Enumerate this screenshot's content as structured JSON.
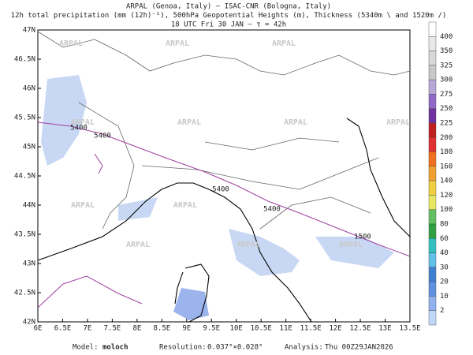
{
  "header": {
    "lines": [
      "ARPAL (Genoa, Italy)  —  ISAC-CNR (Bologna, Italy)",
      "12h total precipitation (mm (12h)⁻¹), 500hPa Geopotential Heights (m), Thickness (5340m \\ and 1520m /)",
      "18 UTC Fri 30 JAN  —  τ = 42h"
    ]
  },
  "map": {
    "lon_labels": [
      "6E",
      "6.5E",
      "7E",
      "7.5E",
      "8E",
      "8.5E",
      "9E",
      "9.5E",
      "10E",
      "10.5E",
      "11E",
      "11.5E",
      "12E",
      "12.5E",
      "13E",
      "13.5E"
    ],
    "lat_labels": [
      "47N",
      "46.5N",
      "46N",
      "45.5N",
      "45N",
      "44.5N",
      "44N",
      "43.5N",
      "43N",
      "42.5N",
      "42N"
    ],
    "watermark": "ARPAL",
    "contour_labels": [
      "5400",
      "5400",
      "5400",
      "5400",
      "1500"
    ]
  },
  "colorbar": {
    "labels": [
      "400",
      "350",
      "325",
      "300",
      "275",
      "250",
      "225",
      "200",
      "180",
      "160",
      "140",
      "120",
      "100",
      "80",
      "60",
      "40",
      "30",
      "20",
      "10",
      "2"
    ],
    "colors": [
      "#ffffff",
      "#e8e8e8",
      "#d8d8d8",
      "#c8c8c8",
      "#b8a8d8",
      "#9068c8",
      "#7030a0",
      "#c02020",
      "#e03030",
      "#f07020",
      "#f0a030",
      "#f0d040",
      "#e8e860",
      "#60c060",
      "#30a040",
      "#30c0c0",
      "#60c0e8",
      "#4080d0",
      "#6090e0",
      "#90b0f0",
      "#c0d8f8"
    ]
  },
  "footer": {
    "model_label": "Model:",
    "model": "moloch",
    "resolution_label": "Resolution:",
    "resolution": "0.037°×0.028°",
    "analysis_label": "Analysis:",
    "analysis": "Thu 00Z29JAN2026"
  }
}
